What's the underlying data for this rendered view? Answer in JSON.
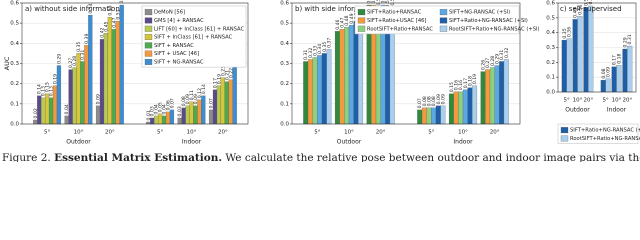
{
  "chart_data": [
    {
      "type": "bar",
      "title": "a) without side information",
      "y_label": "AUC",
      "categories": [
        "5°",
        "10°",
        "20°",
        "5°",
        "10°",
        "20°"
      ],
      "group_labels": [
        "Outdoor",
        "Indoor"
      ],
      "ylim": [
        0,
        0.6
      ],
      "yticks": [
        {
          "value": 0,
          "label": "0.0"
        },
        0.1,
        0.2,
        0.3,
        0.4,
        0.5,
        0.6
      ],
      "grid": true,
      "series": [
        {
          "name": "DeMoN [56]",
          "color": "#8c8c8c",
          "values": [
            0.02,
            0.04,
            0.09,
            0.01,
            0.03,
            0.07
          ]
        },
        {
          "name": "GMS [4] + RANSAC",
          "color": "#5b4a8b",
          "values": [
            0.14,
            0.27,
            0.42,
            0.03,
            0.08,
            0.17
          ]
        },
        {
          "name": "LIFT [60] + InClass [61] + RANSAC",
          "color": "#b7cb52",
          "values": [
            0.13,
            0.28,
            0.45,
            0.04,
            0.09,
            0.19
          ]
        },
        {
          "name": "SIFT + InClass [61] + RANSAC",
          "color": "#d8c73c",
          "values": [
            0.15,
            0.35,
            0.53,
            0.05,
            0.11,
            0.23
          ]
        },
        {
          "name": "SIFT + RANSAC",
          "color": "#4caa4f",
          "values": [
            0.13,
            0.31,
            0.47,
            0.04,
            0.09,
            0.21
          ]
        },
        {
          "name": "SIFT + USAC [46]",
          "color": "#f29a3d",
          "values": [
            0.19,
            0.39,
            0.51,
            0.06,
            0.12,
            0.22
          ]
        },
        {
          "name": "SIFT + NG-RANSAC",
          "color": "#3b8ed6",
          "values": [
            0.29,
            0.54,
            0.59,
            0.07,
            0.14,
            0.29
          ]
        }
      ]
    },
    {
      "type": "bar",
      "title": "b) with side information",
      "categories": [
        "5°",
        "10°",
        "20°",
        "5°",
        "10°",
        "20°"
      ],
      "group_labels": [
        "Outdoor",
        "Indoor"
      ],
      "ylim": [
        0,
        0.6
      ],
      "yticks": [
        {
          "value": 0,
          "label": "0.0"
        },
        0.1,
        0.2,
        0.3,
        0.4,
        0.5,
        0.6
      ],
      "grid": true,
      "series": [
        {
          "name": "SIFT+Ratio+RANSAC",
          "color": "#2f8a3e",
          "values": [
            0.31,
            0.46,
            0.59,
            0.07,
            0.15,
            0.26
          ]
        },
        {
          "name": "SIFT+Ratio+USAC [46]",
          "color": "#f29a3d",
          "values": [
            0.32,
            0.47,
            0.59,
            0.08,
            0.16,
            0.27
          ]
        },
        {
          "name": "RootSIFT+Ratio+RANSAC",
          "color": "#8fd07f",
          "values": [
            0.33,
            0.48,
            0.58,
            0.08,
            0.16,
            0.28
          ]
        },
        {
          "name": "SIFT+NG-RANSAC (+SI)",
          "color": "#5aa9e6",
          "values": [
            0.34,
            0.49,
            0.59,
            0.08,
            0.17,
            0.29
          ]
        },
        {
          "name": "SIFT+Ratio+NG-RANSAC (+SI)",
          "color": "#1f5fa8",
          "values": [
            0.35,
            0.51,
            0.57,
            0.09,
            0.18,
            0.31
          ]
        },
        {
          "name": "RootSIFT+Ratio+NG-RANSAC (+SI)",
          "color": "#a9cff0",
          "values": [
            0.37,
            0.52,
            0.58,
            0.09,
            0.19,
            0.32
          ]
        }
      ]
    },
    {
      "type": "bar",
      "title": "c) self-supervised",
      "categories": [
        "5°",
        "10°",
        "20°",
        "5°",
        "10°",
        "20°"
      ],
      "group_labels": [
        "Outdoor",
        "Indoor"
      ],
      "ylim": [
        0,
        0.6
      ],
      "yticks": [
        {
          "value": 0,
          "label": "0.0"
        },
        0.1,
        0.2,
        0.3,
        0.4,
        0.5,
        0.6
      ],
      "grid": true,
      "series": [
        {
          "name": "SIFT+Ratio+NG-RANSAC (+SI)",
          "color": "#1f5fa8",
          "values": [
            0.35,
            0.49,
            0.57,
            0.08,
            0.17,
            0.29
          ]
        },
        {
          "name": "RootSIFT+Ratio+NG-RANSAC (+SI)",
          "color": "#a9cff0",
          "values": [
            0.36,
            0.51,
            0.58,
            0.09,
            0.18,
            0.31
          ]
        }
      ]
    }
  ],
  "caption": {
    "label": "Figure 2.",
    "bold": "Essential Matrix Estimation.",
    "text": "We calculate the relative pose between outdoor and indoor image pairs via the essential matrix"
  }
}
